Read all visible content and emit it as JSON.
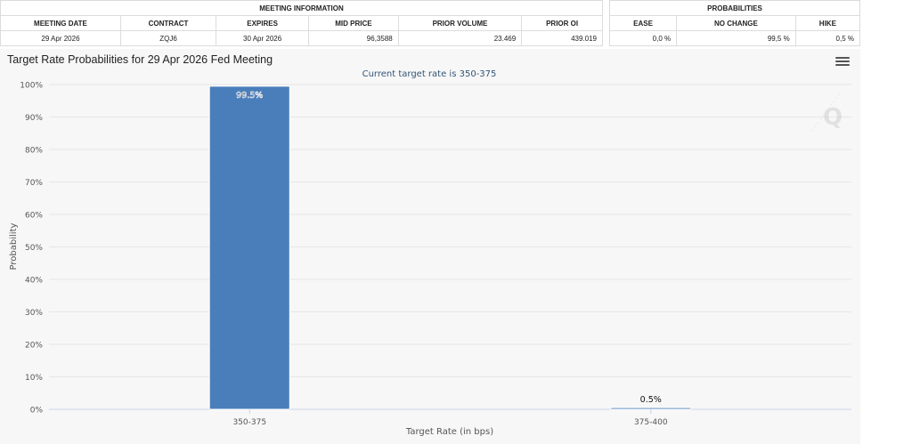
{
  "meeting_info": {
    "group_label": "MEETING INFORMATION",
    "headers": [
      "MEETING DATE",
      "CONTRACT",
      "EXPIRES",
      "MID PRICE",
      "PRIOR VOLUME",
      "PRIOR OI"
    ],
    "values": [
      "29 Apr 2026",
      "ZQJ6",
      "30 Apr 2026",
      "96,3588",
      "23.469",
      "439.019"
    ]
  },
  "probabilities": {
    "group_label": "PROBABILITIES",
    "headers": [
      "EASE",
      "NO CHANGE",
      "HIKE"
    ],
    "values": [
      "0,0 %",
      "99,5 %",
      "0,5 %"
    ]
  },
  "colors": {
    "bar": "#4a7ebb",
    "grid": "#e6e6e6",
    "axis": "#ccd6eb",
    "background": "#f7f7f7"
  },
  "chart_data": {
    "type": "bar",
    "title": "Target Rate Probabilities for 29 Apr 2026 Fed Meeting",
    "subtitle": "Current target rate is 350-375",
    "xlabel": "Target Rate (in bps)",
    "ylabel": "Probability",
    "categories": [
      "350-375",
      "375-400"
    ],
    "values": [
      99.5,
      0.5
    ],
    "data_labels": [
      "99.5%",
      "0.5%"
    ],
    "ylim": [
      0,
      100
    ],
    "yticks": [
      0,
      10,
      20,
      30,
      40,
      50,
      60,
      70,
      80,
      90,
      100
    ],
    "ytick_suffix": "%",
    "grid": true,
    "legend": "none"
  }
}
